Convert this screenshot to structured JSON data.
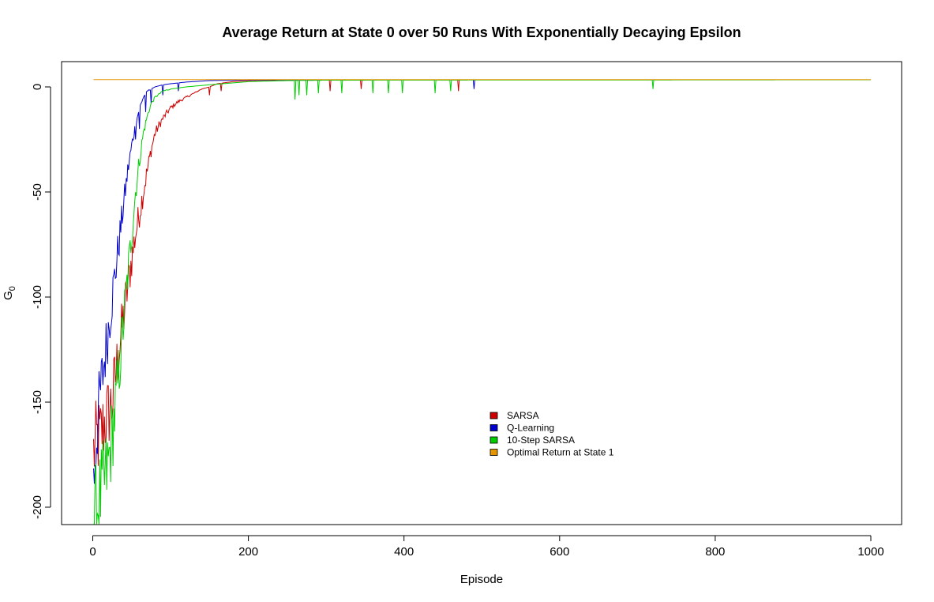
{
  "chart_data": {
    "type": "line",
    "title": "Average Return at State 0 over 50 Runs With Exponentially Decaying Epsilon",
    "xlabel": "Episode",
    "ylabel": "G",
    "ylabel_subscript": "0",
    "xlim": [
      0,
      1000
    ],
    "ylim": [
      -208,
      4
    ],
    "xticks": [
      0,
      200,
      400,
      600,
      800,
      1000
    ],
    "yticks": [
      0,
      -50,
      -100,
      -150,
      -200
    ],
    "grid": false,
    "legend_position": "center-right",
    "series": [
      {
        "name": "SARSA",
        "color": "#CC0000",
        "points": [
          [
            1,
            -174
          ],
          [
            5,
            -168
          ],
          [
            10,
            -166
          ],
          [
            15,
            -160
          ],
          [
            20,
            -155
          ],
          [
            25,
            -150
          ],
          [
            30,
            -135
          ],
          [
            35,
            -122
          ],
          [
            40,
            -108
          ],
          [
            45,
            -95
          ],
          [
            50,
            -82
          ],
          [
            55,
            -70
          ],
          [
            60,
            -60
          ],
          [
            65,
            -50
          ],
          [
            70,
            -40
          ],
          [
            75,
            -30
          ],
          [
            80,
            -22
          ],
          [
            90,
            -15
          ],
          [
            100,
            -10
          ],
          [
            110,
            -7
          ],
          [
            120,
            -5
          ],
          [
            130,
            -3
          ],
          [
            140,
            -1
          ],
          [
            150,
            0
          ],
          [
            160,
            1.5
          ],
          [
            180,
            2.5
          ],
          [
            200,
            3
          ],
          [
            250,
            3.3
          ],
          [
            300,
            3.3
          ],
          [
            400,
            3.4
          ],
          [
            470,
            3.4
          ],
          [
            1000,
            3.4
          ]
        ],
        "dips": [
          [
            150,
            -4
          ],
          [
            165,
            -2
          ],
          [
            305,
            -2
          ],
          [
            345,
            -1
          ],
          [
            470,
            -2
          ]
        ]
      },
      {
        "name": "Q-Learning",
        "color": "#0000CC",
        "points": [
          [
            1,
            -190
          ],
          [
            3,
            -175
          ],
          [
            6,
            -160
          ],
          [
            10,
            -145
          ],
          [
            15,
            -130
          ],
          [
            20,
            -115
          ],
          [
            25,
            -100
          ],
          [
            30,
            -85
          ],
          [
            35,
            -70
          ],
          [
            40,
            -55
          ],
          [
            45,
            -40
          ],
          [
            50,
            -28
          ],
          [
            55,
            -18
          ],
          [
            60,
            -10
          ],
          [
            65,
            -5
          ],
          [
            70,
            -2
          ],
          [
            80,
            0
          ],
          [
            90,
            1
          ],
          [
            100,
            1.5
          ],
          [
            120,
            2.3
          ],
          [
            150,
            3
          ],
          [
            200,
            3.3
          ],
          [
            300,
            3.4
          ],
          [
            1000,
            3.4
          ]
        ],
        "dips": [
          [
            55,
            -25
          ],
          [
            60,
            -20
          ],
          [
            68,
            -12
          ],
          [
            75,
            -8
          ],
          [
            90,
            -4
          ],
          [
            110,
            -2
          ],
          [
            490,
            -1
          ]
        ]
      },
      {
        "name": "10-Step SARSA",
        "color": "#00CC00",
        "points": [
          [
            1,
            -210
          ],
          [
            5,
            -200
          ],
          [
            10,
            -195
          ],
          [
            15,
            -188
          ],
          [
            20,
            -180
          ],
          [
            25,
            -165
          ],
          [
            30,
            -150
          ],
          [
            35,
            -130
          ],
          [
            40,
            -110
          ],
          [
            45,
            -90
          ],
          [
            50,
            -70
          ],
          [
            55,
            -50
          ],
          [
            60,
            -35
          ],
          [
            65,
            -22
          ],
          [
            70,
            -14
          ],
          [
            75,
            -8
          ],
          [
            80,
            -5
          ],
          [
            90,
            -2
          ],
          [
            100,
            -1
          ],
          [
            120,
            0
          ],
          [
            150,
            1
          ],
          [
            200,
            2.5
          ],
          [
            250,
            3
          ],
          [
            300,
            3.2
          ],
          [
            1000,
            3.4
          ]
        ],
        "dips": [
          [
            260,
            -6
          ],
          [
            265,
            -4
          ],
          [
            275,
            -4
          ],
          [
            290,
            -3
          ],
          [
            320,
            -3
          ],
          [
            360,
            -3
          ],
          [
            380,
            -3
          ],
          [
            398,
            -3
          ],
          [
            440,
            -3
          ],
          [
            460,
            -2
          ],
          [
            720,
            -1
          ]
        ]
      },
      {
        "name": "Optimal Return at State 1",
        "color": "#E69500",
        "points": [
          [
            1,
            3.5
          ],
          [
            1000,
            3.5
          ]
        ],
        "dips": []
      }
    ]
  }
}
